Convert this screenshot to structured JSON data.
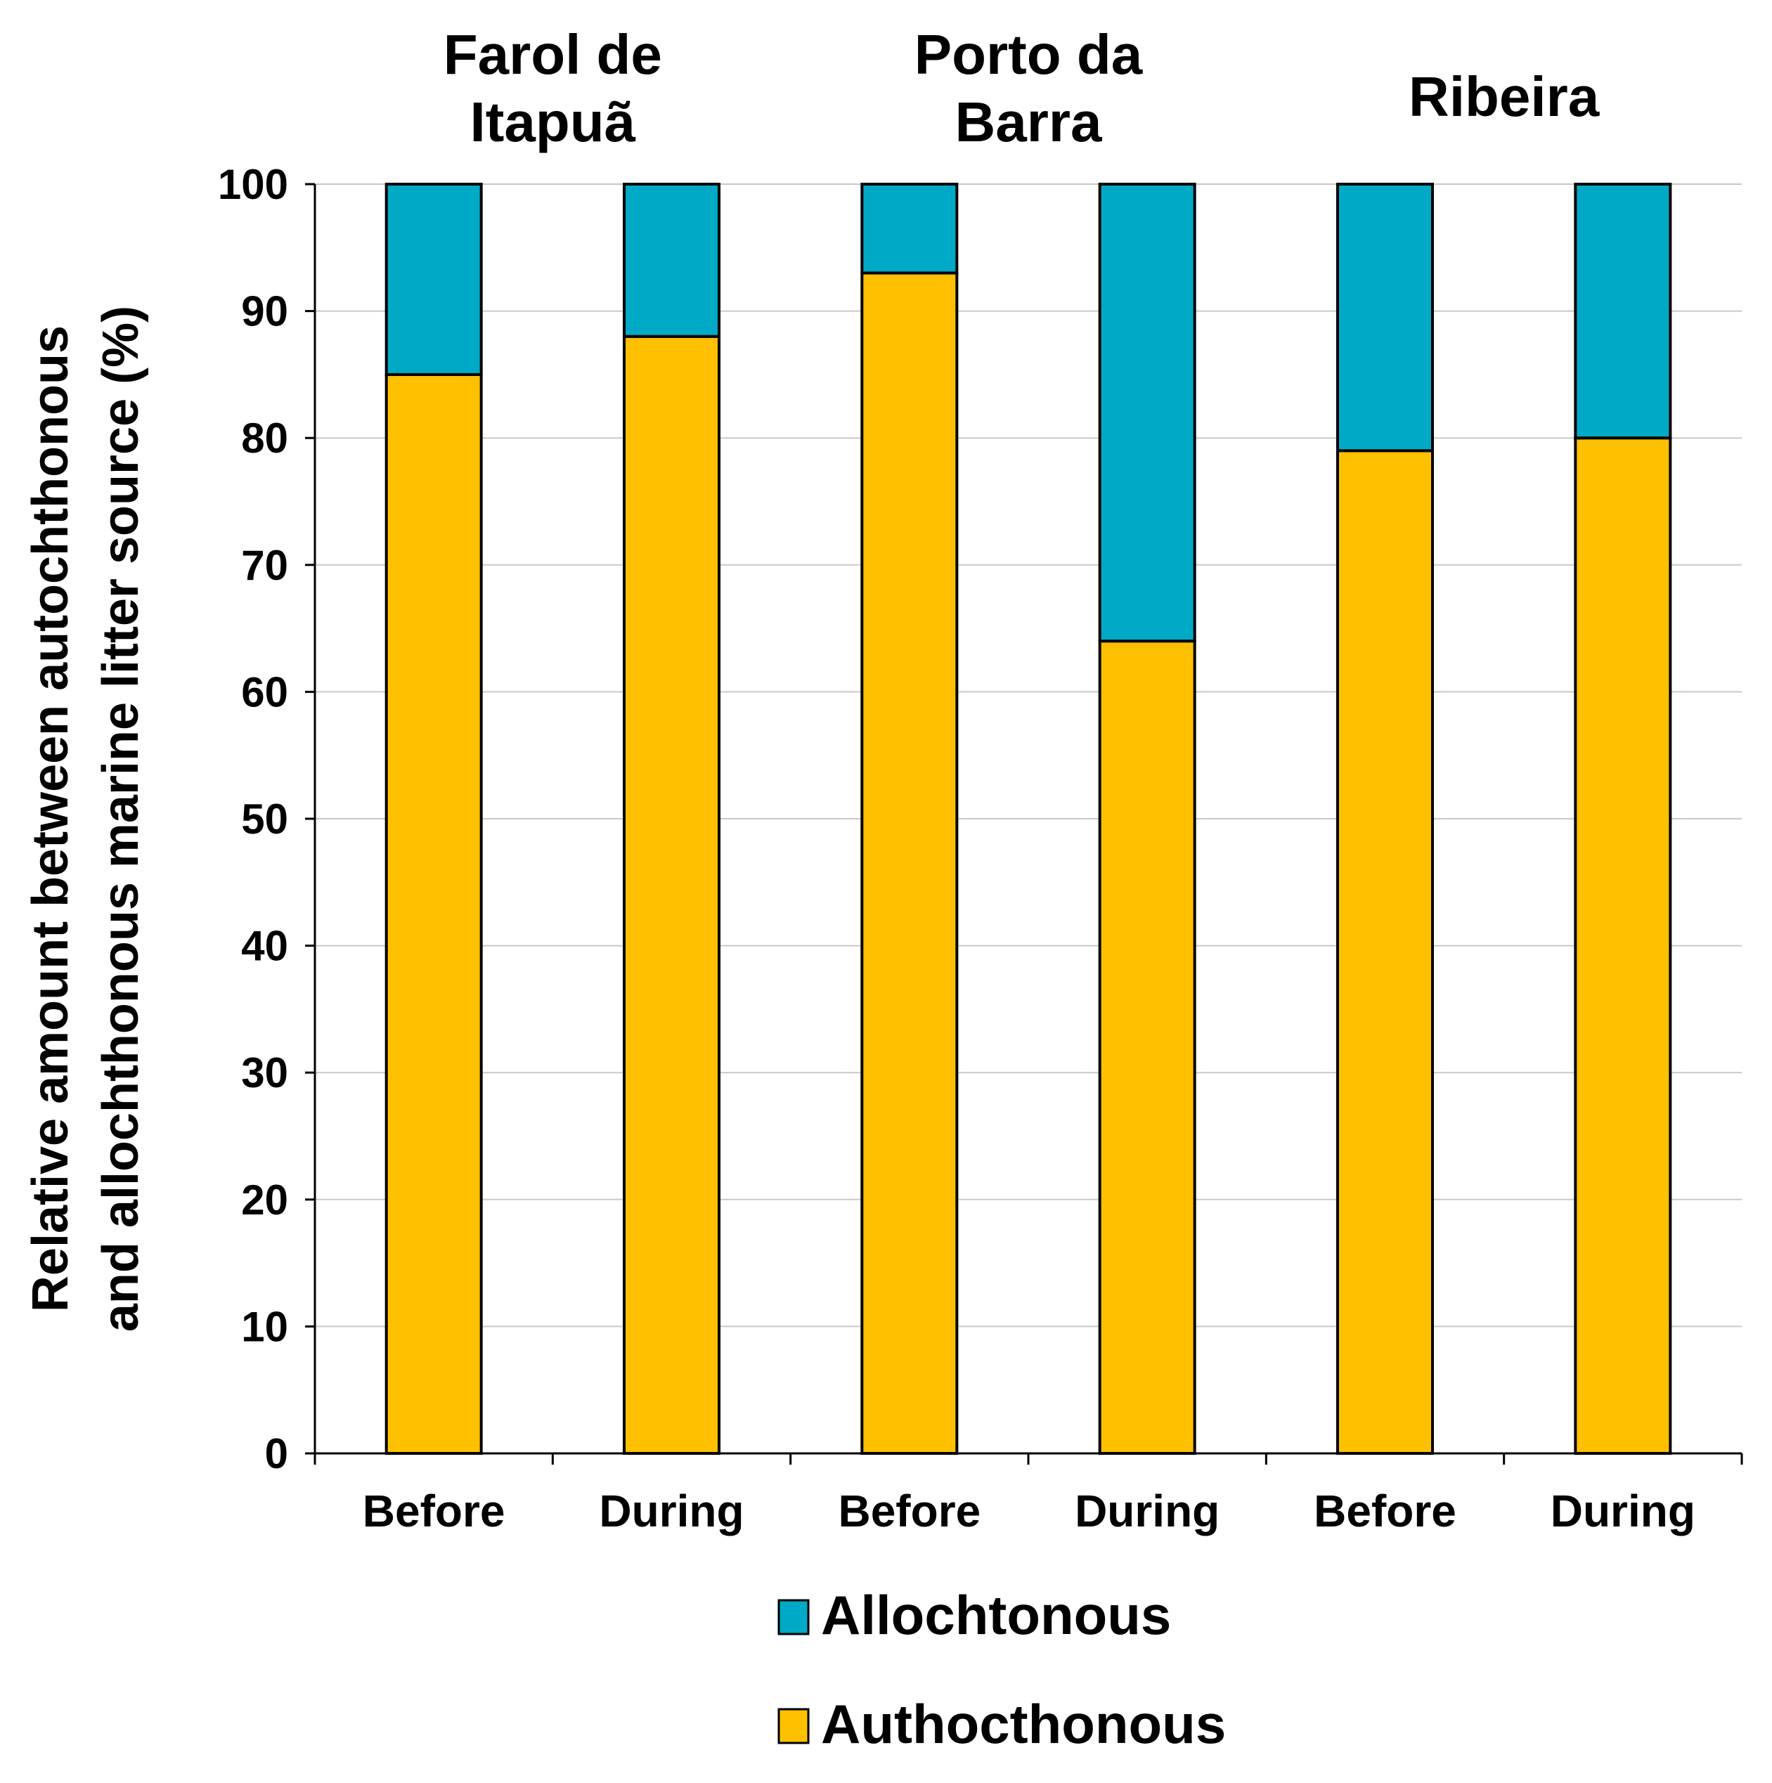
{
  "chart_data": {
    "type": "bar",
    "stacked": true,
    "groups": [
      {
        "lines": [
          "Farol de",
          "Itapuã"
        ]
      },
      {
        "lines": [
          "Porto da",
          "Barra"
        ]
      },
      {
        "lines": [
          "Ribeira"
        ]
      }
    ],
    "categories": [
      "Before",
      "During",
      "Before",
      "During",
      "Before",
      "During"
    ],
    "series": [
      {
        "name": "Authocthonous",
        "color": "#FFC000",
        "values": [
          85,
          88,
          93,
          64,
          79,
          80
        ]
      },
      {
        "name": "Allochtonous",
        "color": "#00AAC6",
        "values": [
          15,
          12,
          7,
          36,
          21,
          20
        ]
      }
    ],
    "legend_order": [
      "Allochtonous",
      "Authocthonous"
    ],
    "ylabel_lines": [
      "Relative amount between autochthonous",
      "and allochthonous marine litter source (%)"
    ],
    "xlabel": "",
    "ylim": [
      0,
      100
    ],
    "yticks": [
      "0",
      "10",
      "20",
      "30",
      "40",
      "50",
      "60",
      "70",
      "80",
      "90",
      "100"
    ],
    "grid": true,
    "legend_position": "bottom-center"
  }
}
